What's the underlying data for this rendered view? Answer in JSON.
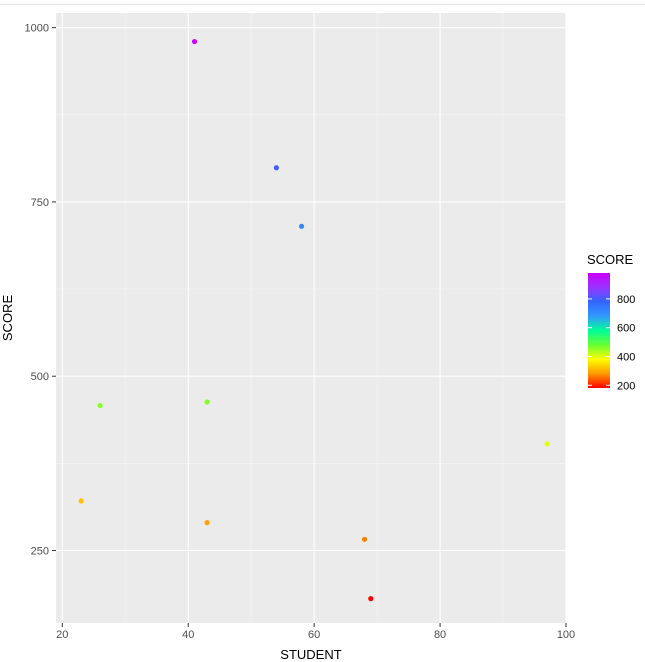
{
  "chart_data": {
    "type": "scatter",
    "xlabel": "STUDENT",
    "ylabel": "SCORE",
    "xlim": [
      19,
      100
    ],
    "ylim": [
      146,
      1021
    ],
    "x_ticks": [
      20,
      40,
      60,
      80,
      100
    ],
    "y_ticks": [
      250,
      500,
      750,
      1000
    ],
    "grid": true,
    "points": [
      {
        "x": 41,
        "y": 980
      },
      {
        "x": 54,
        "y": 799
      },
      {
        "x": 58,
        "y": 715
      },
      {
        "x": 26,
        "y": 458
      },
      {
        "x": 43,
        "y": 463
      },
      {
        "x": 97,
        "y": 403
      },
      {
        "x": 23,
        "y": 321
      },
      {
        "x": 43,
        "y": 290
      },
      {
        "x": 68,
        "y": 266
      },
      {
        "x": 69,
        "y": 181
      }
    ],
    "color_scale": {
      "variable": "SCORE",
      "title": "SCORE",
      "limits": [
        181,
        980
      ],
      "ticks": [
        200,
        400,
        600,
        800
      ],
      "colors": [
        "#ff0000",
        "#ff9900",
        "#ffff00",
        "#66ff33",
        "#00ff99",
        "#3399ff",
        "#3366ff",
        "#9933ff",
        "#cc00ff"
      ],
      "position": "right"
    }
  }
}
